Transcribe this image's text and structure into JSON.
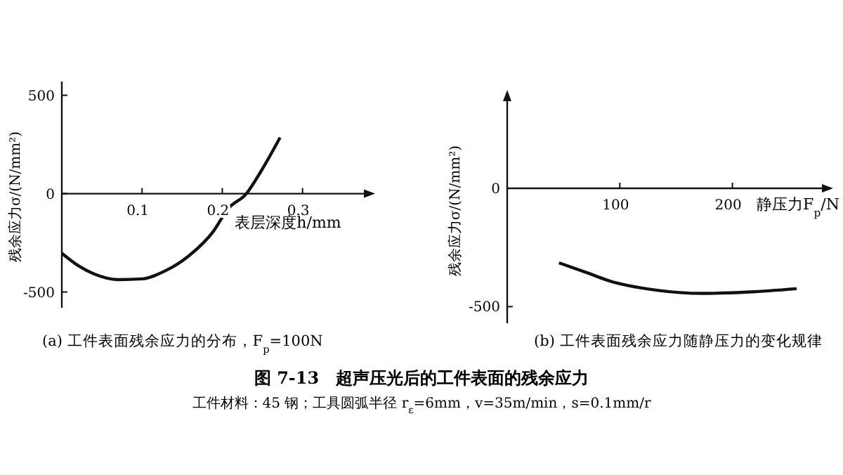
{
  "chart_data": [
    {
      "type": "line",
      "subtitle": "(a) 工件表面残余应力的分布，F$_{p}$=100N",
      "xlabel": "表层深度h/mm",
      "ylabel": "残余应力σ/(N/mm²)",
      "xlim": [
        0,
        0.38
      ],
      "ylim": [
        -580,
        570
      ],
      "xticks": [
        0.1,
        0.2,
        0.3
      ],
      "yticks": [
        -500,
        0,
        500
      ],
      "grid": false,
      "marker": "none",
      "line_style": "solid",
      "series": [
        {
          "color": "#111111",
          "x": [
            0,
            0.022,
            0.04,
            0.07,
            0.1,
            0.129,
            0.159,
            0.189,
            0.207,
            0.23,
            0.248,
            0.272
          ],
          "values": [
            -303,
            -370,
            -408,
            -437,
            -433,
            -392,
            -314,
            -191,
            -78,
            0,
            112,
            285
          ]
        }
      ]
    },
    {
      "type": "line",
      "subtitle": "(b) 工件表面残余应力随静压力的变化规律",
      "xlabel": "静压力F$_{p}$/N",
      "ylabel": "残余应力σ/(N/mm²)",
      "xlim": [
        0,
        282
      ],
      "ylim": [
        -570,
        380
      ],
      "xticks": [
        100,
        200
      ],
      "yticks": [
        -500,
        0
      ],
      "grid": false,
      "marker": "none",
      "line_style": "solid",
      "annotations": [
        "图 7-13　超声压光后的工件表面的残余应力",
        "工件材料：45 钢；工具圆弧半径 r$_{ε}$=6mm，v=35m/min，s=0.1mm/r"
      ],
      "series": [
        {
          "color": "#111111",
          "x": [
            46,
            70,
            90,
            132,
            174,
            215,
            257
          ],
          "values": [
            -315,
            -355,
            -390,
            -430,
            -444,
            -438,
            -424
          ]
        }
      ]
    }
  ]
}
